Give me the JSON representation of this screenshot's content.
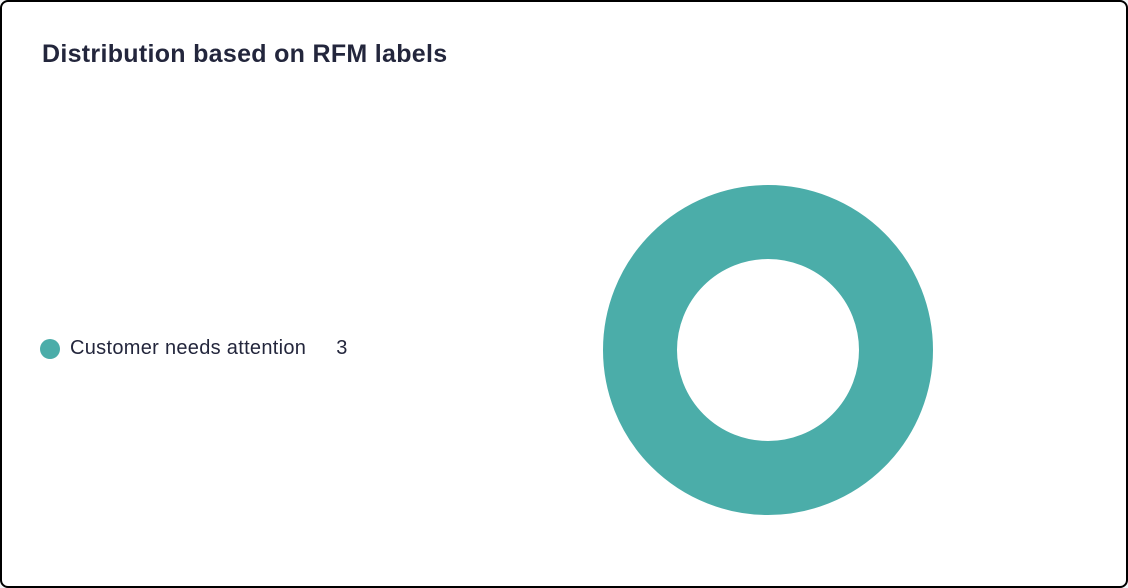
{
  "card": {
    "title": "Distribution based on RFM labels"
  },
  "chart_data": {
    "type": "pie",
    "subtype": "donut",
    "title": "Distribution based on RFM labels",
    "categories": [
      "Customer needs attention"
    ],
    "values": [
      3
    ],
    "total": 3,
    "colors": [
      "#4bada9"
    ],
    "legend_position": "left",
    "inner_radius_ratio": 0.55,
    "labels_on_chart": false
  },
  "legend": {
    "items": [
      {
        "label": "Customer needs attention",
        "value": "3",
        "color": "#4bada9"
      }
    ]
  },
  "colors": {
    "series_teal": "#4bada9",
    "text_dark": "#23263c",
    "card_border": "#000000",
    "card_background": "#ffffff"
  }
}
